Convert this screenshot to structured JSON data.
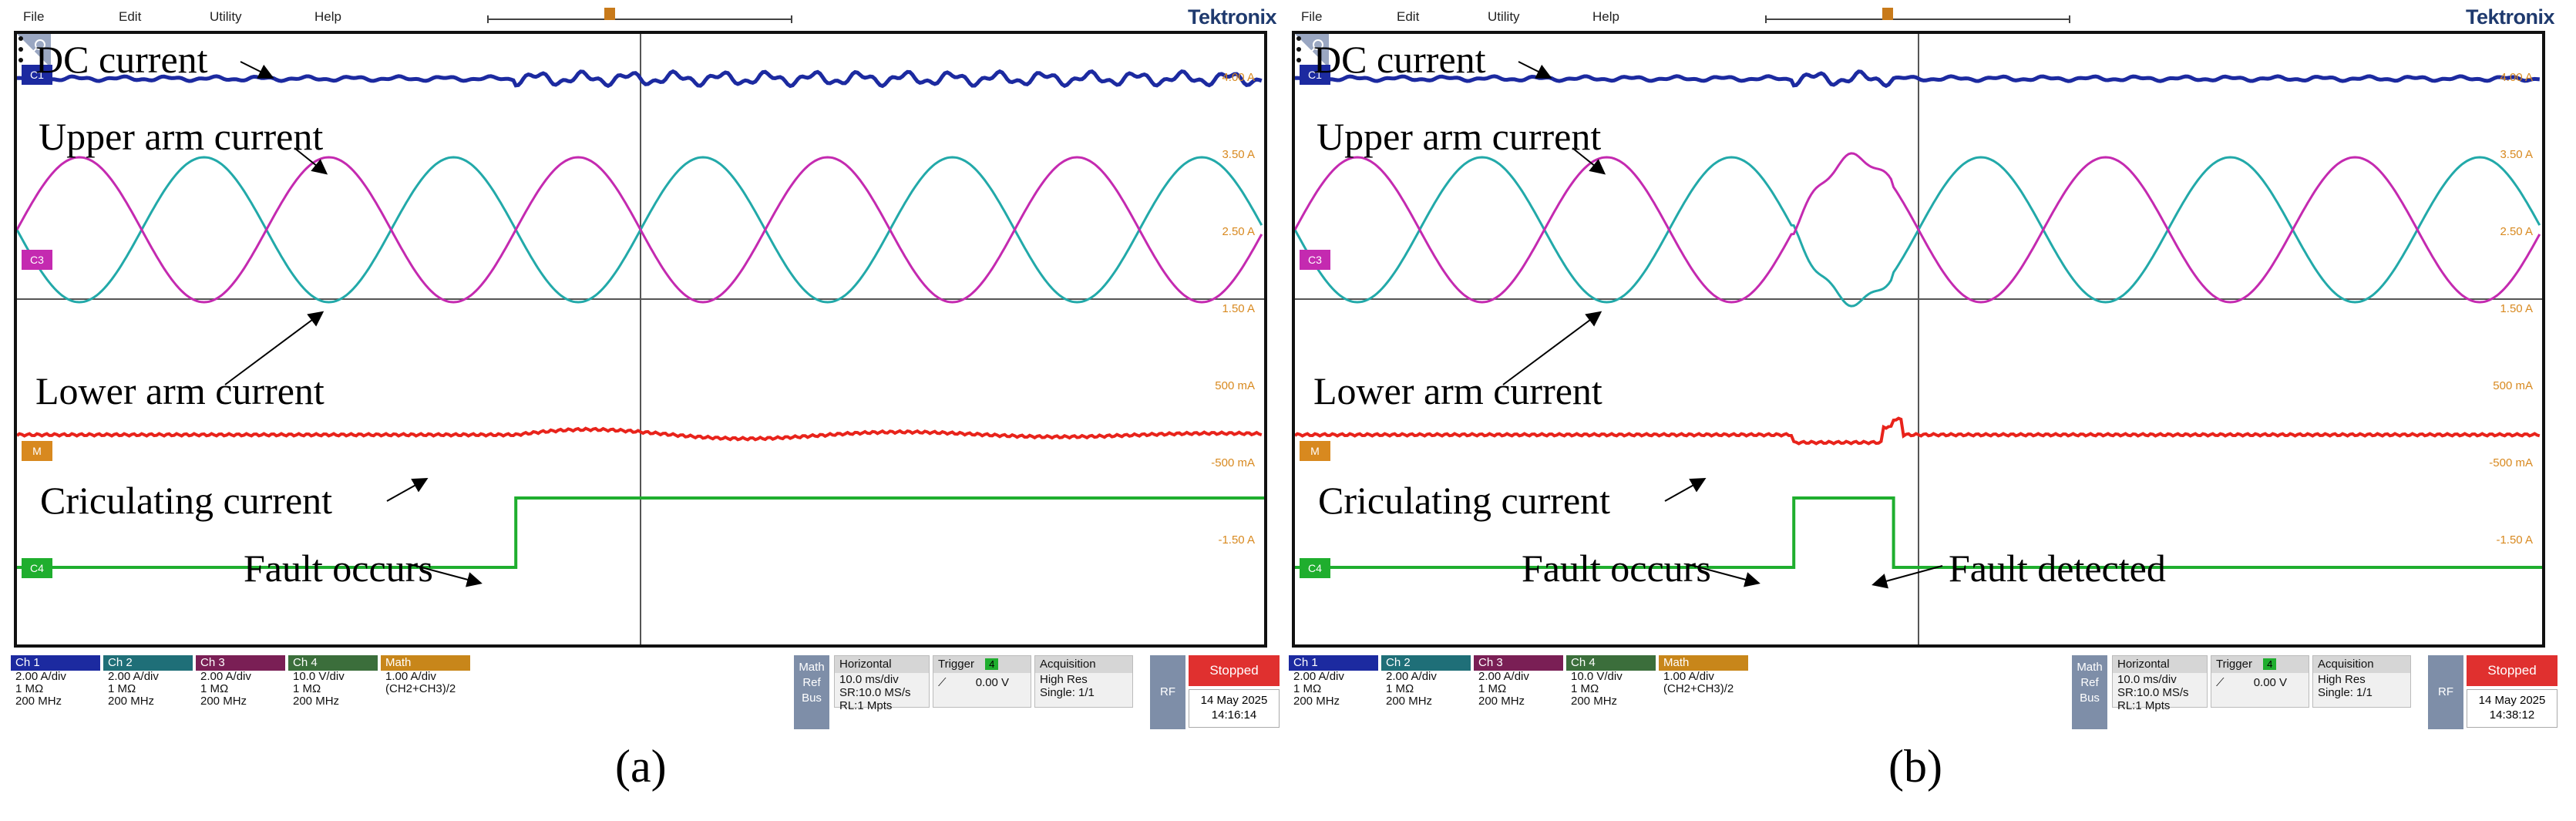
{
  "menu": [
    "File",
    "Edit",
    "Utility",
    "Help"
  ],
  "brand": "Tektronix",
  "colors": {
    "ch1": "#1c2aa0",
    "ch2": "#22a9a9",
    "ch3": "#c42ab0",
    "ch4": "#1fae2e",
    "math": "#e8231b",
    "scale": "#d8891f"
  },
  "channel_tags": {
    "c1": "C1",
    "c3": "C3",
    "m": "M",
    "c4": "C4"
  },
  "scale_labels": [
    "4.00 A",
    "3.50 A",
    "2.50 A",
    "1.50 A",
    "500 mA",
    "-500 mA",
    "-1.50 A"
  ],
  "channel_boxes": [
    {
      "name": "Ch 1",
      "color": "#1c2aa0",
      "lines": [
        "2.00 A/div",
        "1 MΩ",
        "200 MHz"
      ]
    },
    {
      "name": "Ch 2",
      "color": "#1f6f78",
      "lines": [
        "2.00 A/div",
        "1 MΩ",
        "200 MHz"
      ]
    },
    {
      "name": "Ch 3",
      "color": "#7a1f55",
      "lines": [
        "2.00 A/div",
        "1 MΩ",
        "200 MHz"
      ]
    },
    {
      "name": "Ch 4",
      "color": "#3b6e3b",
      "lines": [
        "10.0 V/div",
        "1 MΩ",
        "200 MHz"
      ]
    },
    {
      "name": "Math",
      "color": "#c8861a",
      "lines": [
        "1.00 A/div",
        "(CH2+CH3)/2"
      ]
    }
  ],
  "right_panel": {
    "mrb": [
      "Math",
      "Ref",
      "Bus"
    ],
    "horizontal": {
      "title": "Horizontal",
      "lines": [
        "10.0 ms/div",
        "SR:10.0 MS/s",
        "RL:1 Mpts"
      ]
    },
    "trigger": {
      "title": "Trigger",
      "badge": "4",
      "level": "0.00 V"
    },
    "acquisition": {
      "title": "Acquisition",
      "lines": [
        "High Res",
        "Single: 1/1"
      ]
    },
    "rf": "RF",
    "stopped": "Stopped"
  },
  "scopes": [
    {
      "id": "a",
      "sub_label": "(a)",
      "date": "14 May 2025",
      "time": "14:16:14",
      "annotations": {
        "dc": "DC current",
        "upper": "Upper arm current",
        "lower": "Lower arm current",
        "circ": "Criculating current",
        "fault": "Fault occurs"
      }
    },
    {
      "id": "b",
      "sub_label": "(b)",
      "date": "14 May 2025",
      "time": "14:38:12",
      "annotations": {
        "dc": "DC current",
        "upper": "Upper arm current",
        "lower": "Lower arm current",
        "circ": "Criculating current",
        "fault": "Fault occurs",
        "detected": "Fault detected"
      }
    }
  ],
  "chart_data": [
    {
      "type": "line",
      "panel": "(a)",
      "x_unit": "ms",
      "x_div": "10.0 ms/div",
      "xlim": [
        -50,
        50
      ],
      "series": [
        {
          "name": "DC current",
          "channel": "C1",
          "x": [
            -50,
            50
          ],
          "y": [
            4.0,
            4.0
          ]
        },
        {
          "name": "Upper arm current",
          "channel": "C2",
          "x": [
            -50,
            50
          ],
          "y": [
            2.5,
            2.5
          ]
        },
        {
          "name": "Lower arm current",
          "channel": "C3",
          "x": [
            -50,
            50
          ],
          "y": [
            2.5,
            2.5
          ]
        },
        {
          "name": "Criculating current",
          "channel": "M",
          "x": [
            -50,
            50
          ],
          "y": [
            0,
            0
          ]
        },
        {
          "name": "Fault occurs",
          "channel": "C4",
          "x": [
            -50,
            -10,
            -10,
            50
          ],
          "y": [
            0,
            0,
            1,
            1
          ]
        }
      ]
    },
    {
      "type": "line",
      "panel": "(b)",
      "x_unit": "ms",
      "x_div": "10.0 ms/div",
      "xlim": [
        -50,
        50
      ],
      "series": [
        {
          "name": "DC current",
          "channel": "C1",
          "x": [
            -50,
            50
          ],
          "y": [
            4.0,
            4.0
          ]
        },
        {
          "name": "Upper arm current",
          "channel": "C2",
          "x": [
            -50,
            50
          ],
          "y": [
            2.5,
            2.5
          ]
        },
        {
          "name": "Lower arm current",
          "channel": "C3",
          "x": [
            -50,
            50
          ],
          "y": [
            2.5,
            2.5
          ]
        },
        {
          "name": "Criculating current",
          "channel": "M",
          "x": [
            -50,
            50
          ],
          "y": [
            0,
            0
          ]
        },
        {
          "name": "Fault detected",
          "channel": "C4",
          "x": [
            -50,
            -10,
            -10,
            -2,
            -2,
            50
          ],
          "y": [
            0,
            0,
            1,
            1,
            0,
            0
          ]
        }
      ]
    }
  ]
}
